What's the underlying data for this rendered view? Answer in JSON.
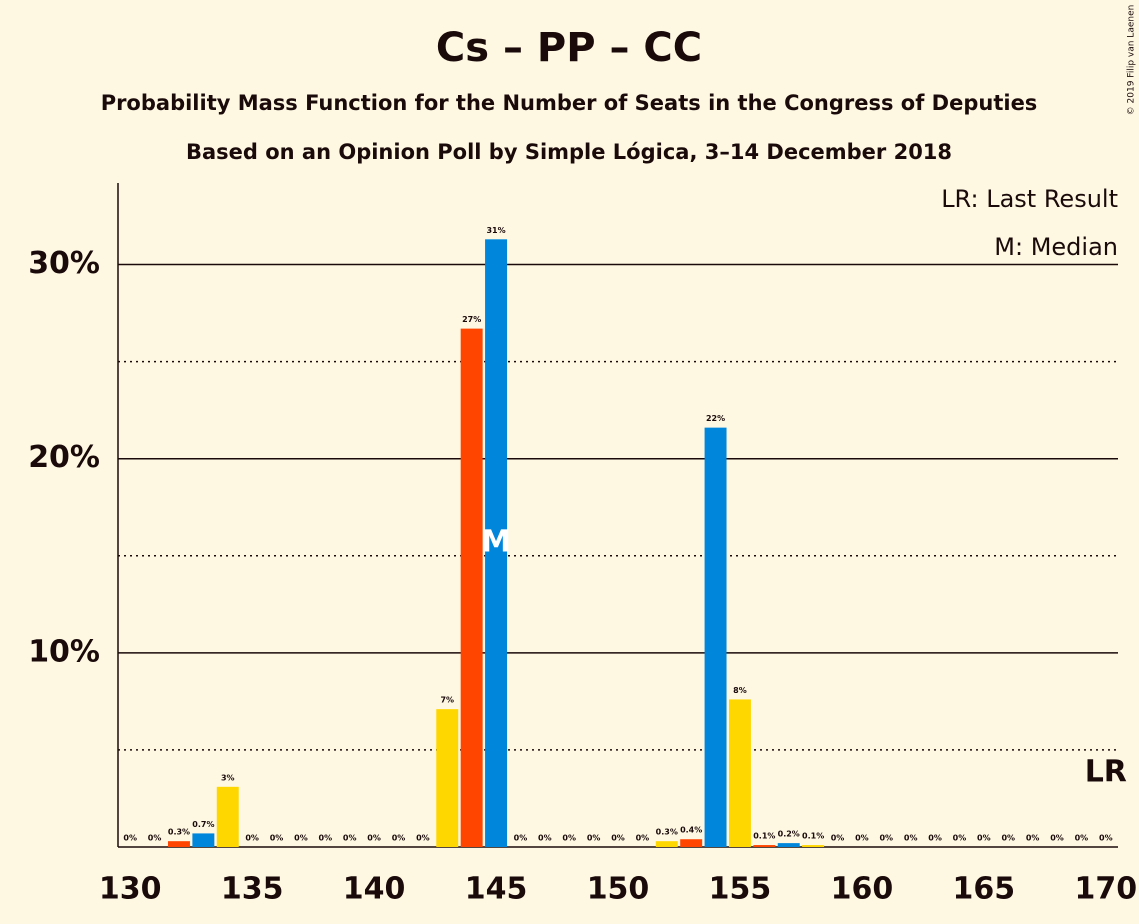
{
  "chart_data": {
    "type": "bar",
    "title": "Cs – PP – CC",
    "subtitle": "Probability Mass Function for the Number of Seats in the Congress of Deputies",
    "subtitle2": "Based on an Opinion Poll by Simple Lógica, 3–14 December 2018",
    "copyright": "© 2019 Filip van Laenen",
    "legend": [
      "LR: Last Result",
      "M: Median"
    ],
    "median": 145,
    "median_label": "M",
    "last_result": 170,
    "last_result_label": "LR",
    "x": [
      130,
      131,
      132,
      133,
      134,
      135,
      136,
      137,
      138,
      139,
      140,
      141,
      142,
      143,
      144,
      145,
      146,
      147,
      148,
      149,
      150,
      151,
      152,
      153,
      154,
      155,
      156,
      157,
      158,
      159,
      160,
      161,
      162,
      163,
      164,
      165,
      166,
      167,
      168,
      169,
      170
    ],
    "values": [
      0,
      0,
      0.3,
      0.7,
      3.1,
      0,
      0,
      0,
      0,
      0,
      0,
      0,
      0,
      7.1,
      26.7,
      31.3,
      0,
      0,
      0,
      0,
      0,
      0,
      0.3,
      0.4,
      21.6,
      7.6,
      0.1,
      0.2,
      0.1,
      0,
      0,
      0,
      0,
      0,
      0,
      0,
      0,
      0,
      0,
      0,
      0
    ],
    "value_labels": [
      "0%",
      "0%",
      "0.3%",
      "0.7%",
      "3%",
      "0%",
      "0%",
      "0%",
      "0%",
      "0%",
      "0%",
      "0%",
      "0%",
      "7%",
      "27%",
      "31%",
      "0%",
      "0%",
      "0%",
      "0%",
      "0%",
      "0%",
      "0.3%",
      "0.4%",
      "22%",
      "8%",
      "0.1%",
      "0.2%",
      "0.1%",
      "0%",
      "0%",
      "0%",
      "0%",
      "0%",
      "0%",
      "0%",
      "0%",
      "0%",
      "0%",
      "0%",
      "0%"
    ],
    "colors": [
      "#ffd700",
      "#ff4500",
      "#ff4500",
      "#0087dc",
      "#ffd700",
      "#ff4500",
      "#0087dc",
      "#ffd700",
      "#ff4500",
      "#0087dc",
      "#ffd700",
      "#ff4500",
      "#0087dc",
      "#ffd700",
      "#ff4500",
      "#0087dc",
      "#ffd700",
      "#ff4500",
      "#0087dc",
      "#ffd700",
      "#ff4500",
      "#0087dc",
      "#ffd700",
      "#ff4500",
      "#0087dc",
      "#ffd700",
      "#ff4500",
      "#0087dc",
      "#ffd700",
      "#ff4500",
      "#0087dc",
      "#ffd700",
      "#ff4500",
      "#0087dc",
      "#ffd700",
      "#ff4500",
      "#0087dc",
      "#ffd700",
      "#ff4500",
      "#0087dc",
      "#ffd700"
    ],
    "xlim": [
      129.5,
      170.5
    ],
    "xticks": [
      130,
      135,
      140,
      145,
      150,
      155,
      160,
      165,
      170
    ],
    "ylim": [
      0,
      34.2
    ],
    "yticks": [
      {
        "value": 10,
        "label": "10%"
      },
      {
        "value": 20,
        "label": "20%"
      },
      {
        "value": 30,
        "label": "30%"
      }
    ],
    "minor_yticks": [
      5,
      15,
      25
    ],
    "grid": true
  }
}
